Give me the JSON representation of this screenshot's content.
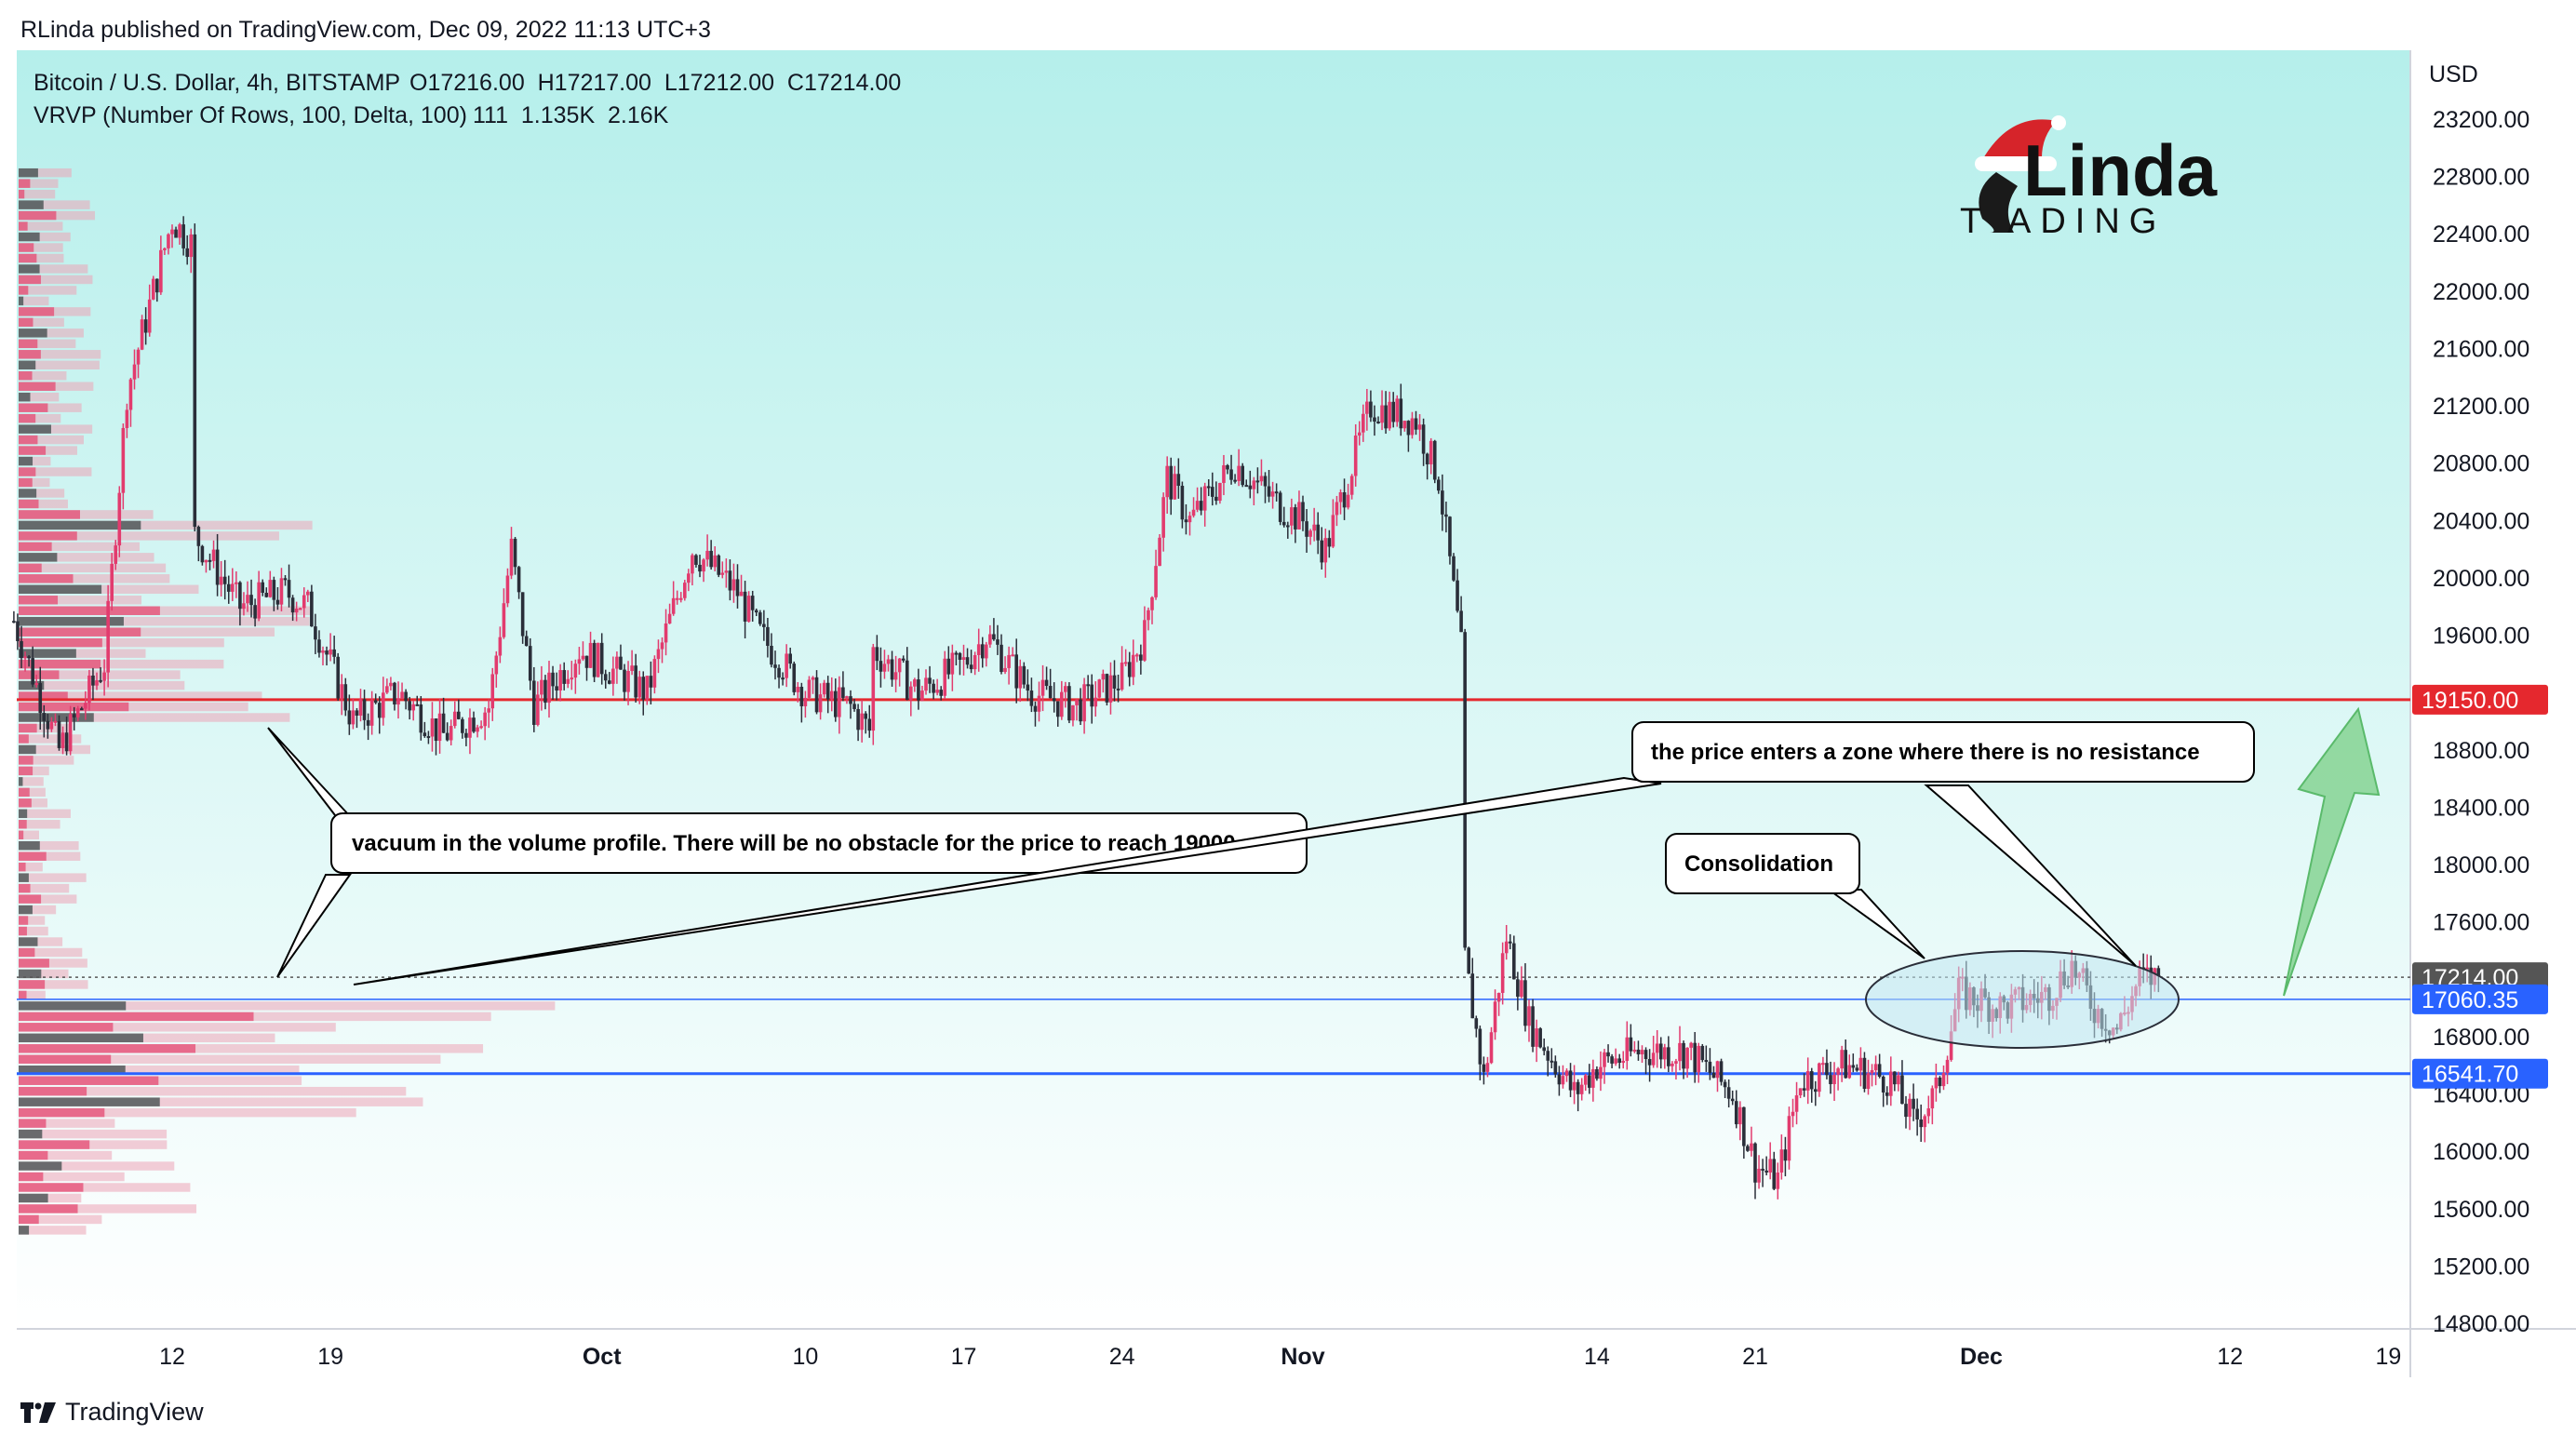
{
  "header": {
    "published": "RLinda published on TradingView.com, Dec 09, 2022 11:13 UTC+3"
  },
  "legend": {
    "symbol": "Bitcoin / U.S. Dollar, 4h, BITSTAMP",
    "ohlc": "O17216.00  H17217.00  L17212.00  C17214.00",
    "indicator": "VRVP (Number Of Rows, 100, Delta, 100)",
    "indicator_values": "111  1.135K  2.16K"
  },
  "logo": {
    "line1": "Linda",
    "line2": "T  ADING"
  },
  "footer": {
    "brand": "TradingView"
  },
  "colors": {
    "bg_top": "#b5efeb",
    "bg_bottom": "#ffffff",
    "up_candle": "#e23b6e",
    "down_candle": "#2a2e39",
    "resistance": "#e5282e",
    "support": "#2962ff",
    "arrow": "#7fd18c",
    "ellipse_fill": "#bfe6f0"
  },
  "chart_data": {
    "type": "candlestick",
    "title": "Bitcoin / U.S. Dollar, 4h, BITSTAMP",
    "currency": "USD",
    "ylim": [
      14600,
      23600
    ],
    "y_ticks": [
      23200,
      22800,
      22400,
      22000,
      21600,
      21200,
      20800,
      20400,
      20000,
      19600,
      18800,
      18400,
      18000,
      17600,
      16800,
      16400,
      16000,
      15600,
      15200,
      14800
    ],
    "x_ticks": [
      {
        "label": "12",
        "date": "2022-09-12"
      },
      {
        "label": "19",
        "date": "2022-09-19"
      },
      {
        "label": "Oct",
        "date": "2022-10-01"
      },
      {
        "label": "10",
        "date": "2022-10-10"
      },
      {
        "label": "17",
        "date": "2022-10-17"
      },
      {
        "label": "24",
        "date": "2022-10-24"
      },
      {
        "label": "Nov",
        "date": "2022-11-01"
      },
      {
        "label": "14",
        "date": "2022-11-14"
      },
      {
        "label": "21",
        "date": "2022-11-21"
      },
      {
        "label": "Dec",
        "date": "2022-12-01"
      },
      {
        "label": "12",
        "date": "2022-12-12"
      },
      {
        "label": "19",
        "date": "2022-12-19"
      }
    ],
    "price_levels": [
      {
        "label": "19150.00",
        "value": 19150,
        "color": "#e5282e"
      },
      {
        "label": "17214.00",
        "value": 17214,
        "color": "#555555"
      },
      {
        "label": "17060.35",
        "value": 17060.35,
        "color": "#2962ff"
      },
      {
        "label": "16541.70",
        "value": 16541.7,
        "color": "#2962ff"
      }
    ],
    "close_path": [
      {
        "date": "2022-09-05",
        "value": 19700
      },
      {
        "date": "2022-09-07",
        "value": 18800
      },
      {
        "date": "2022-09-09",
        "value": 19400
      },
      {
        "date": "2022-09-10",
        "value": 21300
      },
      {
        "date": "2022-09-12",
        "value": 22500
      },
      {
        "date": "2022-09-13",
        "value": 22300
      },
      {
        "date": "2022-09-13",
        "value": 20300
      },
      {
        "date": "2022-09-15",
        "value": 19800
      },
      {
        "date": "2022-09-17",
        "value": 19900
      },
      {
        "date": "2022-09-18",
        "value": 19800
      },
      {
        "date": "2022-09-20",
        "value": 19000
      },
      {
        "date": "2022-09-22",
        "value": 19200
      },
      {
        "date": "2022-09-24",
        "value": 18900
      },
      {
        "date": "2022-09-26",
        "value": 19100
      },
      {
        "date": "2022-09-27",
        "value": 20200
      },
      {
        "date": "2022-09-28",
        "value": 19100
      },
      {
        "date": "2022-09-30",
        "value": 19500
      },
      {
        "date": "2022-10-02",
        "value": 19300
      },
      {
        "date": "2022-10-03",
        "value": 19200
      },
      {
        "date": "2022-10-05",
        "value": 20200
      },
      {
        "date": "2022-10-07",
        "value": 19900
      },
      {
        "date": "2022-10-08",
        "value": 19600
      },
      {
        "date": "2022-10-10",
        "value": 19200
      },
      {
        "date": "2022-10-12",
        "value": 19100
      },
      {
        "date": "2022-10-13",
        "value": 18900
      },
      {
        "date": "2022-10-13",
        "value": 19500
      },
      {
        "date": "2022-10-15",
        "value": 19200
      },
      {
        "date": "2022-10-17",
        "value": 19400
      },
      {
        "date": "2022-10-18",
        "value": 19600
      },
      {
        "date": "2022-10-20",
        "value": 19200
      },
      {
        "date": "2022-10-22",
        "value": 19100
      },
      {
        "date": "2022-10-23",
        "value": 19200
      },
      {
        "date": "2022-10-24",
        "value": 19300
      },
      {
        "date": "2022-10-25",
        "value": 19600
      },
      {
        "date": "2022-10-26",
        "value": 20700
      },
      {
        "date": "2022-10-27",
        "value": 20400
      },
      {
        "date": "2022-10-29",
        "value": 20800
      },
      {
        "date": "2022-10-31",
        "value": 20500
      },
      {
        "date": "2022-11-01",
        "value": 20400
      },
      {
        "date": "2022-11-02",
        "value": 20200
      },
      {
        "date": "2022-11-04",
        "value": 21200
      },
      {
        "date": "2022-11-06",
        "value": 21100
      },
      {
        "date": "2022-11-07",
        "value": 20700
      },
      {
        "date": "2022-11-08",
        "value": 19500
      },
      {
        "date": "2022-11-08",
        "value": 17500
      },
      {
        "date": "2022-11-09",
        "value": 16500
      },
      {
        "date": "2022-11-10",
        "value": 17500
      },
      {
        "date": "2022-11-11",
        "value": 16900
      },
      {
        "date": "2022-11-13",
        "value": 16400
      },
      {
        "date": "2022-11-14",
        "value": 16600
      },
      {
        "date": "2022-11-16",
        "value": 16700
      },
      {
        "date": "2022-11-18",
        "value": 16700
      },
      {
        "date": "2022-11-20",
        "value": 16400
      },
      {
        "date": "2022-11-21",
        "value": 15900
      },
      {
        "date": "2022-11-22",
        "value": 15800
      },
      {
        "date": "2022-11-23",
        "value": 16500
      },
      {
        "date": "2022-11-25",
        "value": 16600
      },
      {
        "date": "2022-11-27",
        "value": 16500
      },
      {
        "date": "2022-11-28",
        "value": 16200
      },
      {
        "date": "2022-11-29",
        "value": 16400
      },
      {
        "date": "2022-11-30",
        "value": 17100
      },
      {
        "date": "2022-12-02",
        "value": 17000
      },
      {
        "date": "2022-12-04",
        "value": 17100
      },
      {
        "date": "2022-12-05",
        "value": 17300
      },
      {
        "date": "2022-12-06",
        "value": 17000
      },
      {
        "date": "2022-12-07",
        "value": 16850
      },
      {
        "date": "2022-12-08",
        "value": 17200
      },
      {
        "date": "2022-12-09",
        "value": 17214
      }
    ],
    "volume_profile_rows": 100,
    "annotations": [
      {
        "text": "vacuum in the volume profile. There will be no obstacle for the price to reach 19000"
      },
      {
        "text": "the price enters a zone where there is no resistance"
      },
      {
        "text": "Consolidation"
      }
    ]
  }
}
